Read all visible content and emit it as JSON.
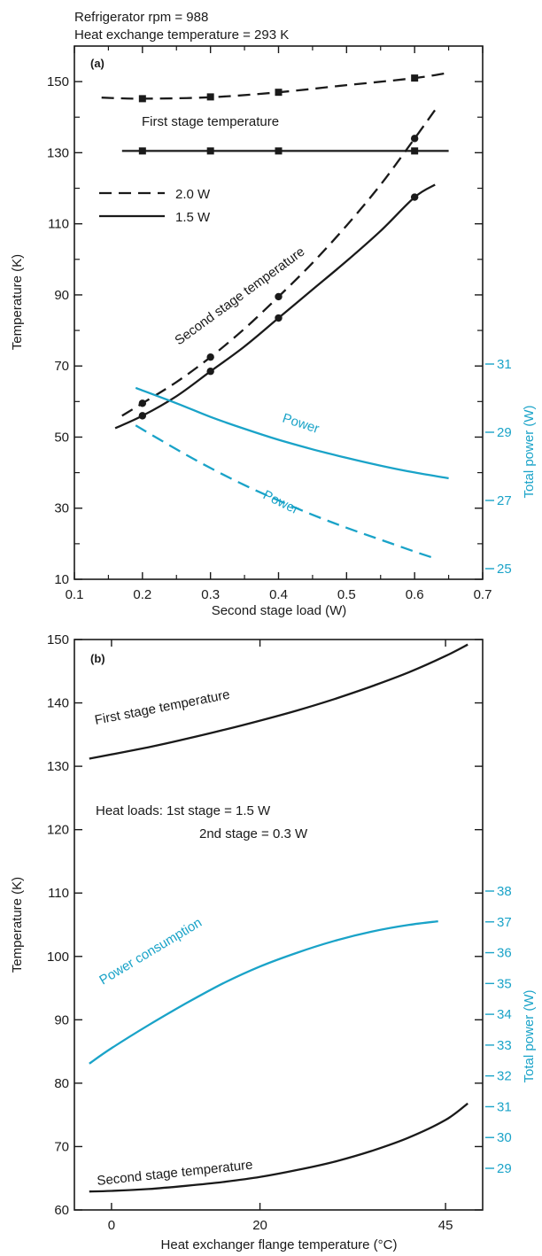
{
  "chart_data": [
    {
      "type": "line",
      "panel_label": "(a)",
      "header": [
        "Refrigerator rpm = 988",
        "Heat exchange temperature = 293 K"
      ],
      "xlabel": "Second stage load (W)",
      "ylabel": "Temperature (K)",
      "y2label": "Total power (W)",
      "xlim": [
        0.1,
        0.7
      ],
      "ylim": [
        10,
        160
      ],
      "y2lim": [
        25,
        31
      ],
      "xticks": [
        "0.1",
        "0.2",
        "0.3",
        "0.4",
        "0.5",
        "0.6",
        "0.7"
      ],
      "yticks": [
        "10",
        "30",
        "50",
        "70",
        "90",
        "110",
        "130",
        "150"
      ],
      "y2ticks": [
        "25",
        "27",
        "29",
        "31"
      ],
      "legend": [
        {
          "label": "2.0 W",
          "style": "dashed"
        },
        {
          "label": "1.5 W",
          "style": "solid"
        }
      ],
      "annotations": {
        "first_stage": "First stage temperature",
        "second_stage": "Second stage temperature",
        "power_solid": "Power",
        "power_dashed": "Power"
      },
      "series": [
        {
          "style": "dashed",
          "color": "#1a1a1a",
          "axis": "left",
          "x": [
            0.14,
            0.2,
            0.3,
            0.4,
            0.5,
            0.6,
            0.65
          ],
          "y": [
            145.5,
            145.2,
            145.6,
            147,
            149,
            151,
            152.5
          ],
          "markers": {
            "shape": "square",
            "x": [
              0.2,
              0.3,
              0.4,
              0.6
            ],
            "y": [
              145.2,
              145.7,
              147,
              151
            ]
          }
        },
        {
          "style": "solid",
          "color": "#1a1a1a",
          "axis": "left",
          "x": [
            0.17,
            0.3,
            0.4,
            0.5,
            0.6,
            0.65
          ],
          "y": [
            130.5,
            130.5,
            130.5,
            130.5,
            130.5,
            130.5
          ],
          "markers": {
            "shape": "square",
            "x": [
              0.2,
              0.3,
              0.4,
              0.6
            ],
            "y": [
              130.5,
              130.5,
              130.5,
              130.5
            ]
          }
        },
        {
          "style": "dashed",
          "color": "#1a1a1a",
          "axis": "left",
          "x": [
            0.17,
            0.2,
            0.25,
            0.3,
            0.35,
            0.4,
            0.45,
            0.5,
            0.55,
            0.6,
            0.63
          ],
          "y": [
            56,
            59.5,
            65.5,
            72.5,
            80.5,
            89.5,
            99,
            109.5,
            121,
            134,
            142
          ],
          "markers": {
            "shape": "circle",
            "x": [
              0.2,
              0.3,
              0.4,
              0.6
            ],
            "y": [
              59.5,
              72.5,
              89.5,
              134
            ]
          }
        },
        {
          "style": "solid",
          "color": "#1a1a1a",
          "axis": "left",
          "x": [
            0.16,
            0.2,
            0.25,
            0.3,
            0.35,
            0.4,
            0.45,
            0.5,
            0.55,
            0.6,
            0.63
          ],
          "y": [
            52.5,
            56,
            61.5,
            68.5,
            75.5,
            83.5,
            91.5,
            99.5,
            108,
            117.5,
            121
          ],
          "markers": {
            "shape": "circle",
            "x": [
              0.2,
              0.3,
              0.4,
              0.6
            ],
            "y": [
              56,
              68.5,
              83.5,
              117.5
            ]
          }
        },
        {
          "style": "solid",
          "color": "#1aa3c8",
          "axis": "right",
          "x": [
            0.19,
            0.25,
            0.3,
            0.35,
            0.4,
            0.45,
            0.5,
            0.55,
            0.6,
            0.65
          ],
          "y": [
            30.3,
            29.85,
            29.45,
            29.1,
            28.78,
            28.5,
            28.25,
            28.02,
            27.82,
            27.65
          ]
        },
        {
          "style": "dashed",
          "color": "#1aa3c8",
          "axis": "right",
          "x": [
            0.19,
            0.25,
            0.3,
            0.35,
            0.4,
            0.45,
            0.5,
            0.55,
            0.6,
            0.63
          ],
          "y": [
            29.2,
            28.5,
            27.95,
            27.45,
            27.0,
            26.58,
            26.2,
            25.85,
            25.5,
            25.3
          ]
        }
      ]
    },
    {
      "type": "line",
      "panel_label": "(b)",
      "xlabel": "Heat exchanger flange temperature (°C)",
      "ylabel": "Temperature (K)",
      "y2label": "Total power (W)",
      "xlim": [
        -5,
        50
      ],
      "ylim": [
        60,
        150
      ],
      "y2lim": [
        29,
        38
      ],
      "xticks": [
        "0",
        "20",
        "45"
      ],
      "xtick_values": [
        0,
        20,
        45
      ],
      "yticks": [
        "60",
        "70",
        "80",
        "90",
        "100",
        "110",
        "120",
        "130",
        "140",
        "150"
      ],
      "y2ticks": [
        "29",
        "30",
        "31",
        "32",
        "33",
        "34",
        "35",
        "36",
        "37",
        "38"
      ],
      "annotations": {
        "heat_loads_1": "Heat loads:  1st stage = 1.5 W",
        "heat_loads_2": "2nd stage = 0.3 W",
        "first_stage": "First stage temperature",
        "power": "Power consumption",
        "second_stage": "Second stage temperature"
      },
      "series": [
        {
          "style": "solid",
          "color": "#1a1a1a",
          "axis": "left",
          "x": [
            -3,
            5,
            10,
            15,
            20,
            25,
            30,
            35,
            40,
            45,
            48
          ],
          "y": [
            131.2,
            133,
            134.3,
            135.7,
            137.2,
            138.8,
            140.6,
            142.6,
            144.8,
            147.4,
            149.2
          ]
        },
        {
          "style": "solid",
          "color": "#1aa3c8",
          "axis": "right",
          "x": [
            -3,
            0,
            5,
            10,
            15,
            20,
            25,
            30,
            35,
            40,
            44
          ],
          "y": [
            32.4,
            32.9,
            33.65,
            34.35,
            35.0,
            35.55,
            36.0,
            36.38,
            36.68,
            36.9,
            37.02
          ]
        },
        {
          "style": "solid",
          "color": "#1a1a1a",
          "axis": "left",
          "x": [
            -3,
            0,
            5,
            10,
            15,
            20,
            25,
            30,
            35,
            40,
            45,
            48
          ],
          "y": [
            62.9,
            63.0,
            63.3,
            63.8,
            64.4,
            65.2,
            66.3,
            67.6,
            69.3,
            71.4,
            74.2,
            76.8
          ]
        }
      ]
    }
  ]
}
